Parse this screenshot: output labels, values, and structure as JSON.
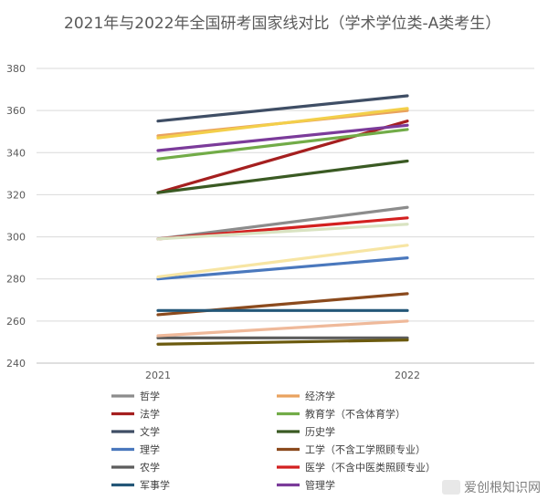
{
  "chart_data": {
    "type": "line",
    "title": "2021年与2022年全国研考国家线对比（学术学位类-A类考生）",
    "categories": [
      "2021",
      "2022"
    ],
    "ylim": [
      240,
      380
    ],
    "yticks": [
      240,
      260,
      280,
      300,
      320,
      340,
      360,
      380
    ],
    "grid": true,
    "legend_position": "bottom",
    "series": [
      {
        "name": "哲学",
        "values": [
          299,
          314
        ],
        "color": "#8c8c8c"
      },
      {
        "name": "经济学",
        "values": [
          348,
          360
        ],
        "color": "#e9a25f"
      },
      {
        "name": "法学",
        "values": [
          321,
          355
        ],
        "color": "#a51f1f"
      },
      {
        "name": "教育学（不含体育学）",
        "values": [
          337,
          351
        ],
        "color": "#72ac48"
      },
      {
        "name": "文学",
        "values": [
          355,
          367
        ],
        "color": "#3f4e65"
      },
      {
        "name": "历史学",
        "values": [
          321,
          336
        ],
        "color": "#3a5a23"
      },
      {
        "name": "理学",
        "values": [
          280,
          290
        ],
        "color": "#4a78bd"
      },
      {
        "name": "工学（不含工学照顾专业）",
        "values": [
          263,
          273
        ],
        "color": "#8b4a1d"
      },
      {
        "name": "农学",
        "values": [
          252,
          252
        ],
        "color": "#5c5c5c"
      },
      {
        "name": "医学（不含中医类照顾专业）",
        "values": [
          299,
          309
        ],
        "color": "#d32020"
      },
      {
        "name": "军事学",
        "values": [
          265,
          265
        ],
        "color": "#245778"
      },
      {
        "name": "管理学",
        "values": [
          341,
          353
        ],
        "color": "#7b3b9a"
      },
      {
        "name": "",
        "values": [
          347,
          361
        ],
        "color": "#f3cf4a"
      },
      {
        "name": "",
        "values": [
          281,
          296
        ],
        "color": "#f7e5a3"
      },
      {
        "name": "",
        "values": [
          253,
          260
        ],
        "color": "#efb99a"
      },
      {
        "name": "",
        "values": [
          299,
          306
        ],
        "color": "#d9e3c2"
      },
      {
        "name": "",
        "values": [
          249,
          251
        ],
        "color": "#6b5a0e"
      }
    ]
  },
  "watermark": {
    "text": "爱创根知识网"
  }
}
